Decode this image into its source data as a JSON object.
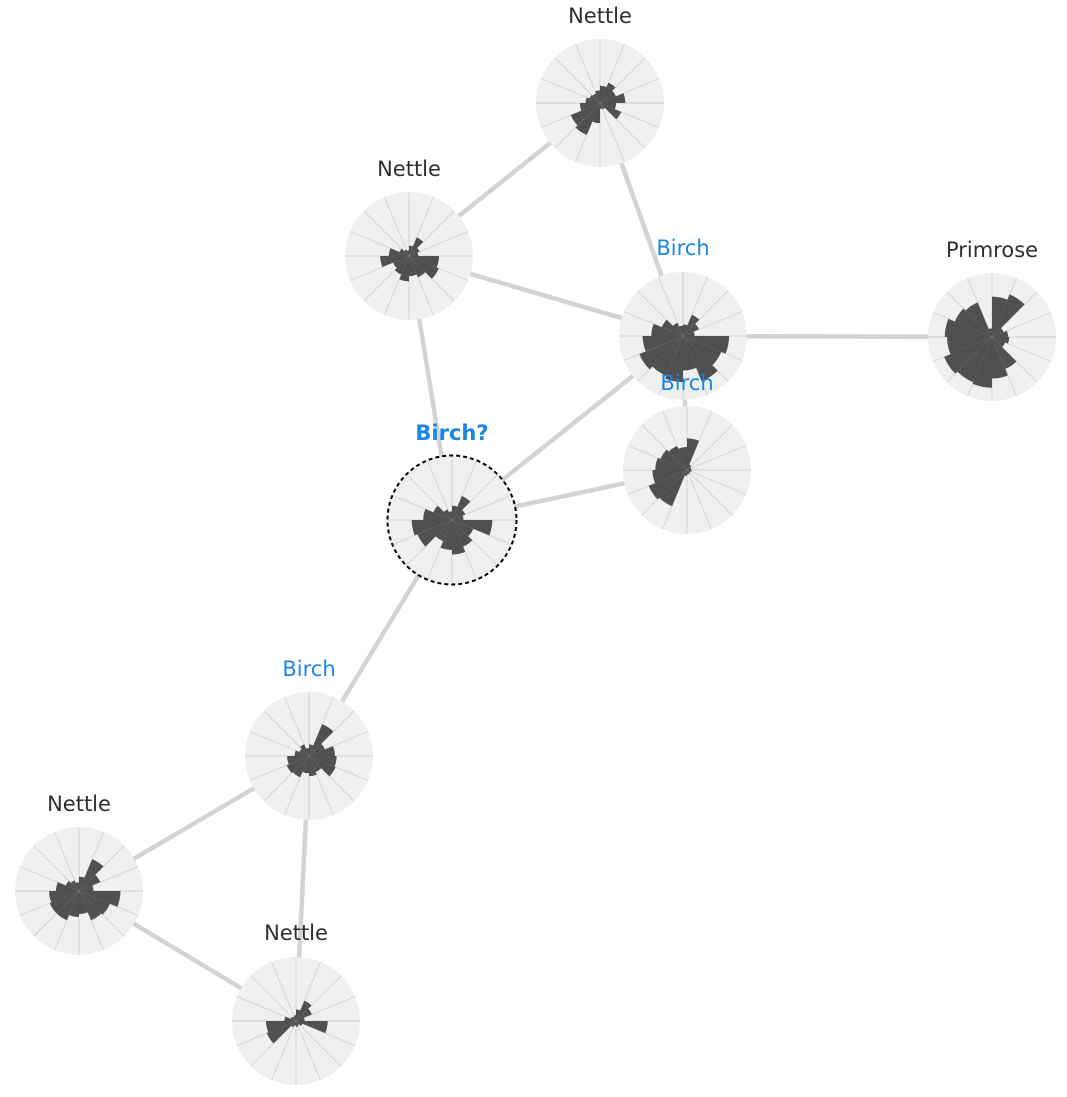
{
  "graph": {
    "nodes": [
      {
        "id": "n1",
        "label": "Nettle",
        "style": "plain",
        "petals": [
          0.3,
          0.38,
          0.3,
          0.44,
          0.28,
          0.4,
          0.12,
          0.1,
          0.35,
          0.6,
          0.55,
          0.35,
          0.25,
          0.2,
          0.18,
          0.22
        ]
      },
      {
        "id": "n2",
        "label": "Nettle",
        "style": "plain",
        "petals": [
          0.18,
          0.35,
          0.2,
          0.16,
          0.52,
          0.56,
          0.4,
          0.35,
          0.44,
          0.35,
          0.3,
          0.5,
          0.35,
          0.18,
          0.12,
          0.1
        ]
      },
      {
        "id": "n3",
        "label": "Birch",
        "style": "species",
        "petals": [
          0.2,
          0.4,
          0.3,
          0.2,
          0.8,
          0.72,
          0.85,
          0.6,
          0.8,
          0.75,
          0.82,
          0.7,
          0.55,
          0.4,
          0.25,
          0.18
        ]
      },
      {
        "id": "n4",
        "label": "Primrose",
        "style": "plain",
        "petals": [
          0.7,
          0.8,
          0.22,
          0.28,
          0.3,
          0.25,
          0.6,
          0.72,
          0.88,
          0.85,
          0.9,
          0.78,
          0.82,
          0.7,
          0.65,
          0.15
        ]
      },
      {
        "id": "n5",
        "label": "Birch",
        "style": "species",
        "petals": [
          0.55,
          0.1,
          0.08,
          0.07,
          0.08,
          0.06,
          0.07,
          0.08,
          0.1,
          0.68,
          0.72,
          0.6,
          0.55,
          0.5,
          0.45,
          0.4
        ]
      },
      {
        "id": "n6",
        "label": "Birch?",
        "style": "query",
        "petals": [
          0.25,
          0.45,
          0.25,
          0.2,
          0.7,
          0.4,
          0.5,
          0.6,
          0.52,
          0.4,
          0.65,
          0.7,
          0.5,
          0.35,
          0.2,
          0.15
        ]
      },
      {
        "id": "n7",
        "label": "Birch",
        "style": "species",
        "petals": [
          0.2,
          0.6,
          0.3,
          0.45,
          0.48,
          0.5,
          0.3,
          0.35,
          0.3,
          0.4,
          0.42,
          0.38,
          0.25,
          0.18,
          0.22,
          0.14
        ]
      },
      {
        "id": "n8",
        "label": "Nettle",
        "style": "plain",
        "petals": [
          0.25,
          0.6,
          0.4,
          0.25,
          0.72,
          0.58,
          0.55,
          0.4,
          0.45,
          0.55,
          0.55,
          0.52,
          0.4,
          0.25,
          0.2,
          0.15
        ]
      },
      {
        "id": "n9",
        "label": "Nettle",
        "style": "plain",
        "petals": [
          0.2,
          0.38,
          0.3,
          0.15,
          0.55,
          0.12,
          0.08,
          0.1,
          0.08,
          0.12,
          0.55,
          0.52,
          0.2,
          0.1,
          0.08,
          0.1
        ]
      }
    ],
    "edges": [
      {
        "from": "n1",
        "to": "n2"
      },
      {
        "from": "n1",
        "to": "n3"
      },
      {
        "from": "n2",
        "to": "n3"
      },
      {
        "from": "n2",
        "to": "n6"
      },
      {
        "from": "n3",
        "to": "n4"
      },
      {
        "from": "n3",
        "to": "n5"
      },
      {
        "from": "n3",
        "to": "n6"
      },
      {
        "from": "n5",
        "to": "n6"
      },
      {
        "from": "n6",
        "to": "n7"
      },
      {
        "from": "n7",
        "to": "n8"
      },
      {
        "from": "n7",
        "to": "n9"
      },
      {
        "from": "n8",
        "to": "n9"
      }
    ]
  }
}
